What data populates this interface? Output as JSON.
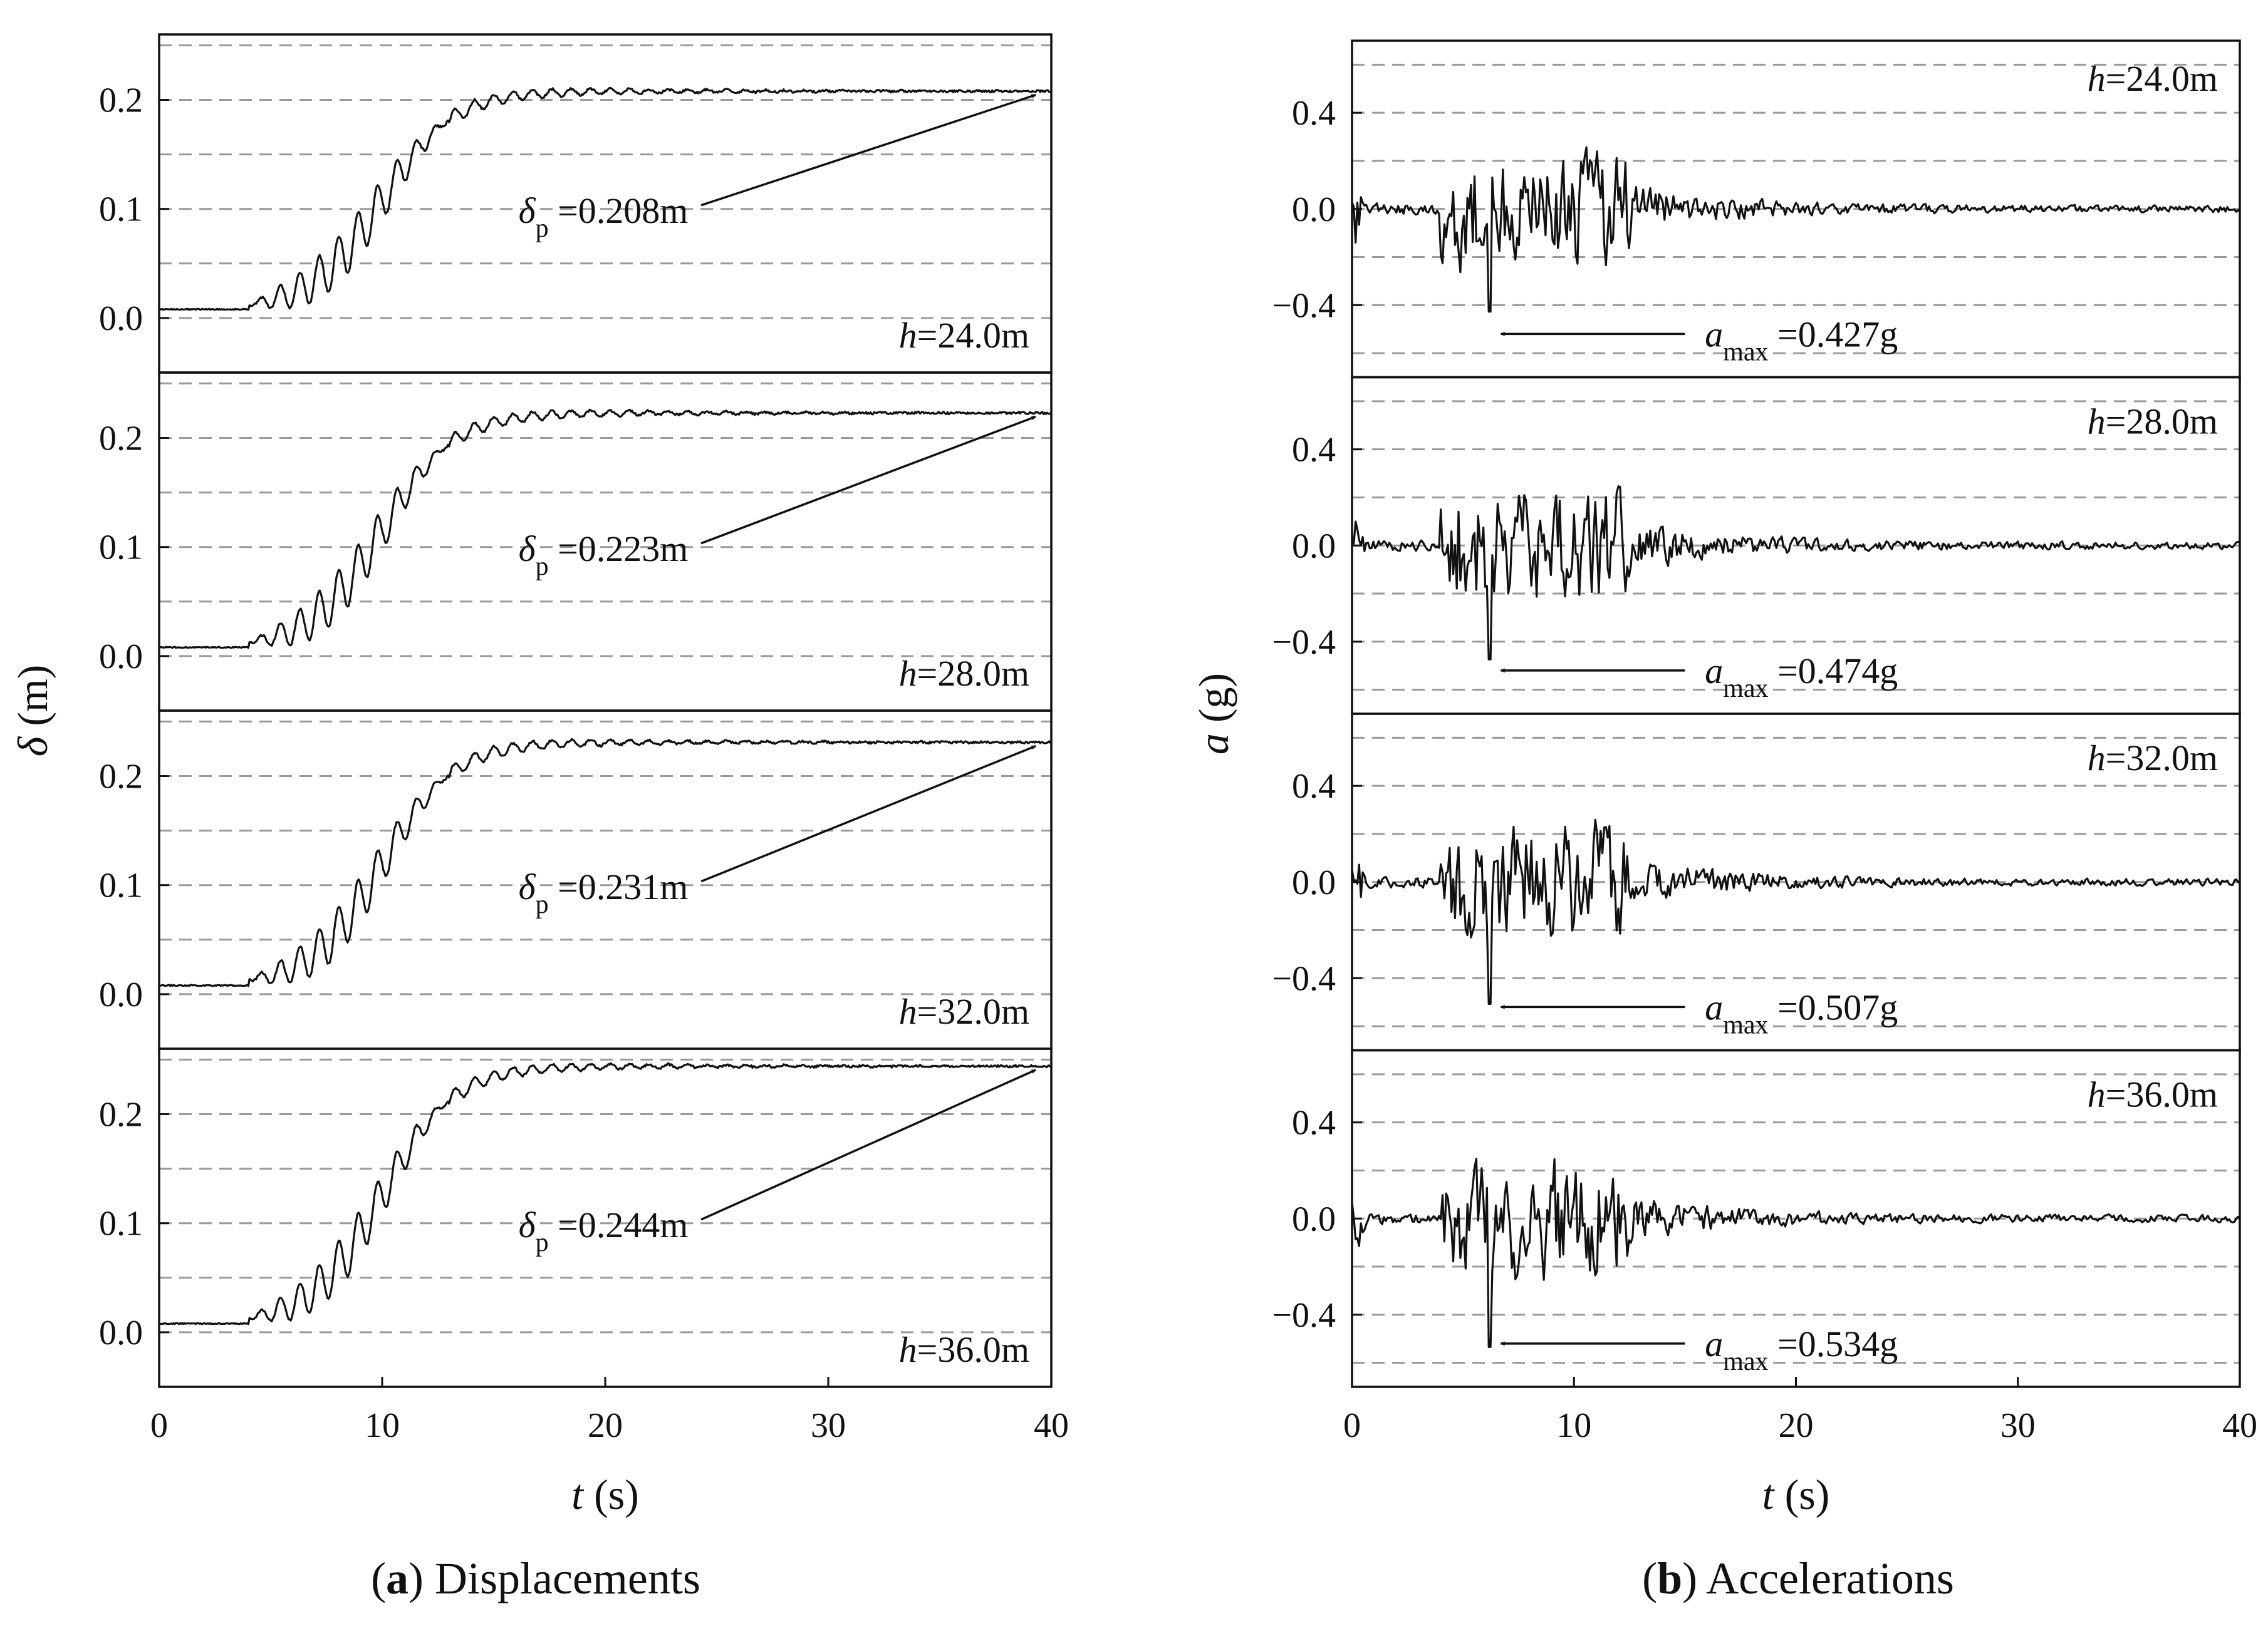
{
  "figure": {
    "caption_a": {
      "letter": "a",
      "text": "Displacements"
    },
    "caption_b": {
      "letter": "b",
      "text": "Accelerations"
    }
  },
  "chart_data": [
    {
      "type": "line",
      "id": "displacements",
      "title": "",
      "xlabel": {
        "symbol": "t",
        "unit": "(s)"
      },
      "ylabel": {
        "symbol": "δ",
        "unit": "(m)"
      },
      "xlim": [
        0,
        40
      ],
      "ylim": [
        -0.05,
        0.26
      ],
      "x_ticks": [
        "0",
        "10",
        "20",
        "30",
        "40"
      ],
      "y_ticks": [
        "0.0",
        "0.1",
        "0.2"
      ],
      "y_tick_values": [
        0.0,
        0.1,
        0.2
      ],
      "grid_y": [
        -0.05,
        0.0,
        0.05,
        0.1,
        0.15,
        0.2,
        0.25
      ],
      "grid": "dashed horizontal",
      "panels": [
        {
          "h_label": {
            "var": "h",
            "text": "=24.0m"
          },
          "value": 0.208,
          "annotation": {
            "symbol": "δ",
            "sub": "p",
            "text": "=0.208m"
          }
        },
        {
          "h_label": {
            "var": "h",
            "text": "=28.0m"
          },
          "value": 0.223,
          "annotation": {
            "symbol": "δ",
            "sub": "p",
            "text": "=0.223m"
          }
        },
        {
          "h_label": {
            "var": "h",
            "text": "=32.0m"
          },
          "value": 0.231,
          "annotation": {
            "symbol": "δ",
            "sub": "p",
            "text": "=0.231m"
          }
        },
        {
          "h_label": {
            "var": "h",
            "text": "=36.0m"
          },
          "value": 0.244,
          "annotation": {
            "symbol": "δ",
            "sub": "p",
            "text": "=0.244m"
          }
        }
      ]
    },
    {
      "type": "line",
      "id": "accelerations",
      "title": "",
      "xlabel": {
        "symbol": "t",
        "unit": "(s)"
      },
      "ylabel": {
        "symbol": "a",
        "unit": "(g)"
      },
      "xlim": [
        0,
        40
      ],
      "ylim": [
        -0.7,
        0.7
      ],
      "x_ticks": [
        "0",
        "10",
        "20",
        "30",
        "40"
      ],
      "y_ticks": [
        "0.4",
        "0.0",
        "−0.4"
      ],
      "y_tick_values": [
        0.4,
        0.0,
        -0.4
      ],
      "grid_y": [
        -0.6,
        -0.4,
        -0.2,
        0.0,
        0.2,
        0.4,
        0.6
      ],
      "grid": "dashed horizontal",
      "panels": [
        {
          "h_label": {
            "var": "h",
            "text": "=24.0m"
          },
          "value": 0.427,
          "annotation": {
            "symbol": "a",
            "sub": "max",
            "text": "=0.427g"
          }
        },
        {
          "h_label": {
            "var": "h",
            "text": "=28.0m"
          },
          "value": 0.474,
          "annotation": {
            "symbol": "a",
            "sub": "max",
            "text": "=0.474g"
          }
        },
        {
          "h_label": {
            "var": "h",
            "text": "=32.0m"
          },
          "value": 0.507,
          "annotation": {
            "symbol": "a",
            "sub": "max",
            "text": "=0.507g"
          }
        },
        {
          "h_label": {
            "var": "h",
            "text": "=36.0m"
          },
          "value": 0.534,
          "annotation": {
            "symbol": "a",
            "sub": "max",
            "text": "=0.534g"
          }
        }
      ]
    }
  ]
}
